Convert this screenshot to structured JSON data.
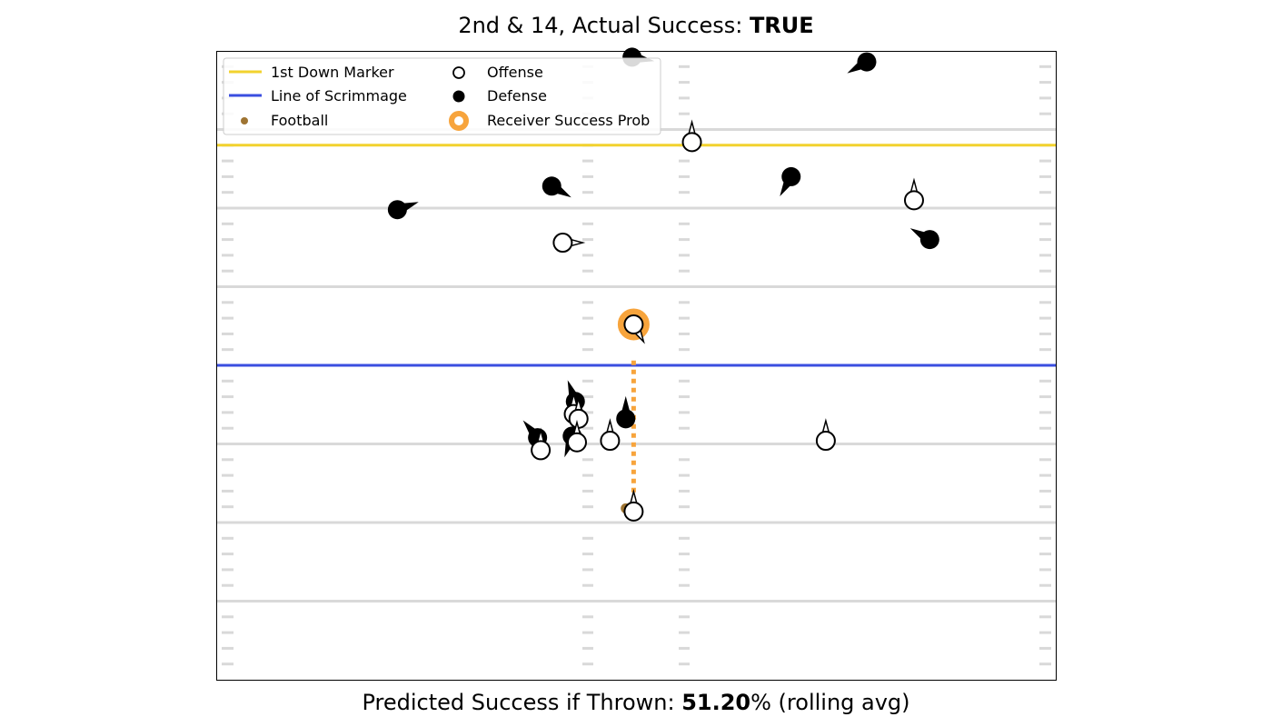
{
  "header": {
    "title_prefix": "2nd & 14, Actual Success: ",
    "title_value": "TRUE"
  },
  "footer": {
    "prefix": "Predicted Success if Thrown: ",
    "value": "51.20",
    "suffix": "% (rolling avg)"
  },
  "legend": {
    "items": [
      {
        "label": "1st Down Marker",
        "kind": "line",
        "color": "#f2d22e"
      },
      {
        "label": "Line of Scrimmage",
        "kind": "line",
        "color": "#3a4ee0"
      },
      {
        "label": "Football",
        "kind": "dot",
        "color": "#9e7432"
      },
      {
        "label": "Offense",
        "kind": "open-circle",
        "color": "#000000"
      },
      {
        "label": "Defense",
        "kind": "filled-circle",
        "color": "#000000"
      },
      {
        "label": "Receiver Success Prob",
        "kind": "ring",
        "color": "#f7a43c"
      }
    ]
  },
  "colors": {
    "first_down": "#f2d22e",
    "line_of_scrimmage": "#3a4ee0",
    "football": "#9e7432",
    "receiver_highlight": "#f7a43c",
    "yard_line": "#d9d9d9"
  },
  "chart_data": {
    "type": "scatter",
    "title": "2nd & 14, Actual Success: TRUE",
    "xlim": [
      0,
      53.3
    ],
    "ylim": [
      0,
      40
    ],
    "grid": false,
    "legend_position": "top-left",
    "yard_lines": [
      5,
      10,
      15,
      20,
      25,
      30,
      35
    ],
    "first_down_marker": 34,
    "line_of_scrimmage": 20,
    "football": {
      "x": 26,
      "y": 10.9
    },
    "receiver_link": {
      "from": [
        26.5,
        20.3
      ],
      "to": [
        26.5,
        10.9
      ]
    },
    "offense": [
      {
        "x": 30.2,
        "y": 34.2,
        "dir": 0
      },
      {
        "x": 44.3,
        "y": 30.5,
        "dir": 0
      },
      {
        "x": 22.0,
        "y": 27.8,
        "dir": 90
      },
      {
        "x": 26.5,
        "y": 22.6,
        "dir": 150,
        "highlight": true
      },
      {
        "x": 22.7,
        "y": 16.9,
        "dir": 0
      },
      {
        "x": 23.0,
        "y": 16.6,
        "dir": 0
      },
      {
        "x": 20.6,
        "y": 14.6,
        "dir": 0
      },
      {
        "x": 22.9,
        "y": 15.1,
        "dir": 0
      },
      {
        "x": 25.0,
        "y": 15.2,
        "dir": 0
      },
      {
        "x": 38.7,
        "y": 15.2,
        "dir": 0
      },
      {
        "x": 26.5,
        "y": 10.7,
        "dir": 0
      }
    ],
    "defense": [
      {
        "x": 26.4,
        "y": 39.6,
        "dir": 100
      },
      {
        "x": 41.3,
        "y": 39.3,
        "dir": 240
      },
      {
        "x": 11.5,
        "y": 29.9,
        "dir": 70
      },
      {
        "x": 21.3,
        "y": 31.4,
        "dir": 120
      },
      {
        "x": 36.5,
        "y": 32.0,
        "dir": 210
      },
      {
        "x": 45.3,
        "y": 28.0,
        "dir": 300
      },
      {
        "x": 22.8,
        "y": 17.7,
        "dir": 340
      },
      {
        "x": 26.0,
        "y": 16.6,
        "dir": 0
      },
      {
        "x": 20.4,
        "y": 15.4,
        "dir": 320
      },
      {
        "x": 22.6,
        "y": 15.5,
        "dir": 200
      }
    ]
  }
}
